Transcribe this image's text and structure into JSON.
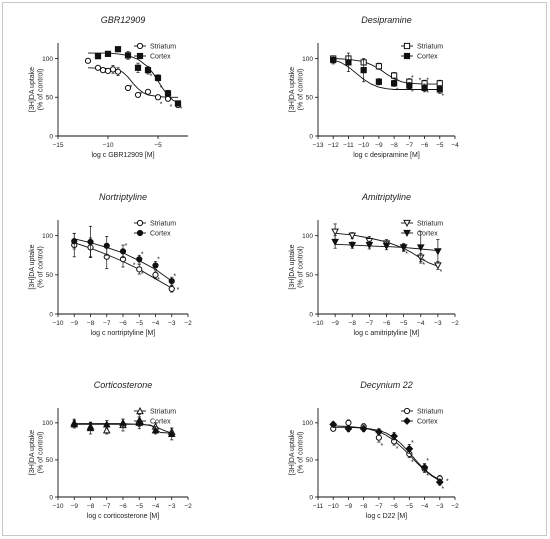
{
  "chart_data": [
    {
      "type": "scatter",
      "title": "GBR12909",
      "xlabel": "log c GBR12909 [M]",
      "ylabel": [
        "[3H]DA uptake",
        "(% of control)"
      ],
      "xlim": [
        -15,
        -2
      ],
      "ylim": [
        0,
        120
      ],
      "xticks": [
        -15,
        -10,
        -5
      ],
      "yticks": [
        0,
        50,
        100
      ],
      "legend": "top-right",
      "series": [
        {
          "name": "Striatum",
          "marker": "circle-open",
          "x": [
            -12,
            -11,
            -10.5,
            -10,
            -9.5,
            -9,
            -8,
            -7,
            -6,
            -5,
            -4,
            -3
          ],
          "y": [
            97,
            88,
            85,
            84,
            86,
            83,
            62,
            53,
            57,
            50,
            48,
            40
          ],
          "err": [
            1,
            2,
            3,
            2,
            5,
            5,
            3,
            2,
            3,
            3,
            3,
            3
          ],
          "fit_x": [
            -12,
            -11,
            -10,
            -9,
            -8.5,
            -8,
            -7.5,
            -7,
            -6.5,
            -6,
            -5,
            -4,
            -3
          ],
          "fit_y": [
            88,
            87.5,
            87,
            85,
            82,
            76,
            68,
            61,
            56,
            53,
            51,
            50,
            50
          ]
        },
        {
          "name": "Cortex",
          "marker": "square-filled",
          "x": [
            -11,
            -10,
            -9,
            -8,
            -7,
            -6,
            -5,
            -4,
            -3
          ],
          "y": [
            103,
            106,
            112,
            104,
            88,
            85,
            75,
            55,
            42
          ],
          "err": [
            2,
            3,
            3,
            5,
            6,
            5,
            4,
            4,
            3
          ],
          "fit_x": [
            -12,
            -11,
            -10,
            -9,
            -8,
            -7,
            -6,
            -5.5,
            -5,
            -4.5,
            -4,
            -3.5,
            -3
          ],
          "fit_y": [
            107,
            107,
            107,
            106,
            104,
            99,
            89,
            81,
            71,
            61,
            52,
            46,
            43
          ]
        }
      ],
      "annotations": [
        {
          "text": "*",
          "x": -8,
          "y": 64
        },
        {
          "text": "*",
          "x": -7,
          "y": 55
        },
        {
          "text": "*",
          "x": -6,
          "y": 78
        },
        {
          "text": "*",
          "x": -5,
          "y": 63
        },
        {
          "text": "*",
          "x": -5,
          "y": 42
        },
        {
          "text": "*",
          "x": -4,
          "y": 48
        },
        {
          "text": "*",
          "x": -4,
          "y": 39
        },
        {
          "text": "*",
          "x": -3,
          "y": 36
        }
      ]
    },
    {
      "type": "scatter",
      "title": "Desipramine",
      "xlabel": "log c desipramine [M]",
      "ylabel": [
        "[3H]DA uptake",
        "(% of control)"
      ],
      "xlim": [
        -13,
        -4
      ],
      "ylim": [
        0,
        120
      ],
      "xticks": [
        -13,
        -12,
        -11,
        -10,
        -9,
        -8,
        -7,
        -6,
        -5,
        -4
      ],
      "yticks": [
        0,
        50,
        100
      ],
      "legend": "top-right",
      "series": [
        {
          "name": "Striatum",
          "marker": "square-open",
          "x": [
            -12,
            -11,
            -10,
            -9,
            -8,
            -7,
            -6,
            -5
          ],
          "y": [
            100,
            100,
            95,
            90,
            78,
            70,
            68,
            68
          ],
          "err": [
            2,
            2,
            3,
            4,
            4,
            4,
            4,
            4
          ],
          "fit_x": [
            -12,
            -11,
            -10,
            -9.5,
            -9,
            -8.5,
            -8,
            -7.5,
            -7,
            -6,
            -5
          ],
          "fit_y": [
            100,
            99,
            96,
            92,
            87,
            80,
            74,
            70,
            68,
            67,
            67
          ]
        },
        {
          "name": "Cortex",
          "marker": "square-filled",
          "x": [
            -12,
            -11,
            -10,
            -9,
            -8,
            -7,
            -6,
            -5
          ],
          "y": [
            98,
            95,
            85,
            70,
            68,
            65,
            62,
            60
          ],
          "err": [
            5,
            12,
            15,
            4,
            4,
            4,
            5,
            5
          ],
          "fit_x": [
            -12,
            -11.5,
            -11,
            -10.5,
            -10,
            -9.5,
            -9,
            -8.5,
            -8,
            -7,
            -6,
            -5
          ],
          "fit_y": [
            98,
            95,
            89,
            81,
            73,
            67,
            63,
            61,
            60,
            60,
            60,
            60
          ]
        }
      ],
      "annotations": [
        {
          "text": "*",
          "x": -8,
          "y": 72
        },
        {
          "text": "*",
          "x": -8,
          "y": 60
        },
        {
          "text": "*",
          "x": -7,
          "y": 76
        },
        {
          "text": "*",
          "x": -7,
          "y": 58
        },
        {
          "text": "*",
          "x": -6.5,
          "y": 73
        },
        {
          "text": "*",
          "x": -6,
          "y": 73
        },
        {
          "text": "*",
          "x": -6,
          "y": 57
        },
        {
          "text": "*",
          "x": -5,
          "y": 53
        }
      ]
    },
    {
      "type": "scatter",
      "title": "Nortriptyline",
      "xlabel": "log c nortriptyline [M]",
      "ylabel": [
        "[3H]DA uptake",
        "(% of control)"
      ],
      "xlim": [
        -10,
        -2
      ],
      "ylim": [
        0,
        120
      ],
      "xticks": [
        -10,
        -9,
        -8,
        -7,
        -6,
        -5,
        -4,
        -3,
        -2
      ],
      "yticks": [
        0,
        50,
        100
      ],
      "legend": "top-right",
      "series": [
        {
          "name": "Striatum",
          "marker": "circle-open",
          "x": [
            -9,
            -8,
            -7,
            -6,
            -5,
            -4,
            -3
          ],
          "y": [
            88,
            85,
            73,
            70,
            57,
            50,
            32
          ],
          "err": [
            15,
            12,
            15,
            10,
            6,
            5,
            4
          ],
          "fit_x": [
            -9,
            -8,
            -7,
            -6,
            -5,
            -4,
            -3
          ],
          "fit_y": [
            91,
            84,
            76,
            67,
            57,
            45,
            33
          ]
        },
        {
          "name": "Cortex",
          "marker": "circle-filled",
          "x": [
            -9,
            -8,
            -7,
            -6,
            -5,
            -4,
            -3
          ],
          "y": [
            93,
            92,
            87,
            80,
            70,
            62,
            42
          ],
          "err": [
            10,
            20,
            12,
            8,
            5,
            5,
            5
          ],
          "fit_x": [
            -9,
            -8,
            -7,
            -6,
            -5,
            -4,
            -3
          ],
          "fit_y": [
            96,
            91,
            85,
            78,
            68,
            57,
            42
          ]
        }
      ],
      "annotations": [
        {
          "text": "*",
          "x": -6,
          "y": 88
        },
        {
          "text": "*",
          "x": -5.5,
          "y": 63
        },
        {
          "text": "*",
          "x": -5,
          "y": 77
        },
        {
          "text": "*",
          "x": -5,
          "y": 52
        },
        {
          "text": "*",
          "x": -4,
          "y": 71
        },
        {
          "text": "*",
          "x": -4,
          "y": 45
        },
        {
          "text": "*",
          "x": -3,
          "y": 49
        },
        {
          "text": "*",
          "x": -2.8,
          "y": 32
        }
      ]
    },
    {
      "type": "scatter",
      "title": "Amitriptyline",
      "xlabel": "log c amitriptyline [M]",
      "ylabel": [
        "[3H]DA uptake",
        "(% of control)"
      ],
      "xlim": [
        -10,
        -2
      ],
      "ylim": [
        0,
        120
      ],
      "xticks": [
        -10,
        -9,
        -8,
        -7,
        -6,
        -5,
        -4,
        -3,
        -2
      ],
      "yticks": [
        0,
        50,
        100
      ],
      "legend": "top-right",
      "series": [
        {
          "name": "Striatum",
          "marker": "triangle-down-open",
          "x": [
            -9,
            -8,
            -7,
            -6,
            -5,
            -4,
            -3
          ],
          "y": [
            105,
            100,
            93,
            90,
            85,
            72,
            62
          ],
          "err": [
            10,
            4,
            6,
            5,
            5,
            5,
            5
          ],
          "fit_x": [
            -9,
            -8,
            -7,
            -6,
            -5,
            -4.5,
            -4,
            -3.5,
            -3
          ],
          "fit_y": [
            103,
            101,
            97,
            92,
            84,
            78,
            71,
            65,
            61
          ]
        },
        {
          "name": "Cortex",
          "marker": "triangle-down-filled",
          "x": [
            -9,
            -8,
            -7,
            -6,
            -5,
            -4,
            -3
          ],
          "y": [
            92,
            88,
            88,
            87,
            85,
            85,
            80
          ],
          "err": [
            8,
            4,
            5,
            5,
            4,
            20,
            15
          ],
          "fit_x": [
            -9,
            -8,
            -7,
            -6,
            -5,
            -4,
            -3
          ],
          "fit_y": [
            89,
            88,
            87,
            86,
            85,
            83,
            81
          ]
        }
      ],
      "annotations": [
        {
          "text": "*",
          "x": -5,
          "y": 78
        },
        {
          "text": "*",
          "x": -4,
          "y": 68
        },
        {
          "text": "*",
          "x": -4,
          "y": 64
        },
        {
          "text": "*",
          "x": -3,
          "y": 55
        }
      ]
    },
    {
      "type": "scatter",
      "title": "Corticosterone",
      "xlabel": "log c corticosterone [M]",
      "ylabel": [
        "[3H]DA uptake",
        "(% of control)"
      ],
      "xlim": [
        -10,
        -2
      ],
      "ylim": [
        0,
        120
      ],
      "xticks": [
        -10,
        -9,
        -8,
        -7,
        -6,
        -5,
        -4,
        -3,
        -2
      ],
      "yticks": [
        0,
        50,
        100
      ],
      "legend": "top-right",
      "series": [
        {
          "name": "Striatum",
          "marker": "triangle-up-open",
          "x": [
            -9,
            -8,
            -7,
            -6,
            -5,
            -4,
            -3
          ],
          "y": [
            100,
            95,
            90,
            97,
            103,
            95,
            88
          ],
          "err": [
            5,
            5,
            5,
            8,
            8,
            5,
            5
          ],
          "fit_x": [
            -9,
            -8,
            -7,
            -6,
            -5,
            -4.5,
            -4,
            -3.5,
            -3
          ],
          "fit_y": [
            99,
            99,
            99,
            99,
            98,
            97,
            95,
            90,
            86
          ]
        },
        {
          "name": "Cortex",
          "marker": "triangle-up-filled",
          "x": [
            -9,
            -8,
            -7,
            -6,
            -5,
            -4,
            -3
          ],
          "y": [
            98,
            93,
            98,
            100,
            100,
            90,
            85
          ],
          "err": [
            5,
            8,
            5,
            5,
            8,
            5,
            8
          ],
          "fit_x": [
            -9,
            -8,
            -7,
            -6,
            -5,
            -4.3,
            -4,
            -3.7,
            -3
          ],
          "fit_y": [
            98,
            98,
            98,
            98,
            98,
            97,
            92,
            87,
            86
          ]
        }
      ],
      "annotations": []
    },
    {
      "type": "scatter",
      "title": "Decynium 22",
      "xlabel": "log c D22 [M]",
      "ylabel": [
        "[3H]DA uptake",
        "(% of control)"
      ],
      "xlim": [
        -11,
        -2
      ],
      "ylim": [
        0,
        120
      ],
      "xticks": [
        -11,
        -10,
        -9,
        -8,
        -7,
        -6,
        -5,
        -4,
        -3,
        -2
      ],
      "yticks": [
        0,
        50,
        100
      ],
      "legend": "top-right",
      "series": [
        {
          "name": "Striatum",
          "marker": "circle-open",
          "x": [
            -10,
            -9,
            -8,
            -7,
            -6,
            -5,
            -4,
            -3
          ],
          "y": [
            92,
            100,
            95,
            80,
            75,
            58,
            38,
            25
          ],
          "err": [
            3,
            4,
            4,
            6,
            5,
            5,
            5,
            4
          ],
          "fit_x": [
            -10,
            -9,
            -8,
            -7,
            -6.5,
            -6,
            -5.5,
            -5,
            -4.5,
            -4,
            -3.5,
            -3
          ],
          "fit_y": [
            96,
            95,
            93,
            88,
            83,
            76,
            67,
            57,
            46,
            36,
            28,
            22
          ]
        },
        {
          "name": "Cortex",
          "marker": "diamond-filled",
          "x": [
            -10,
            -9,
            -8,
            -7,
            -6,
            -5,
            -4,
            -3
          ],
          "y": [
            98,
            92,
            92,
            88,
            82,
            65,
            40,
            20
          ],
          "err": [
            3,
            4,
            4,
            4,
            5,
            6,
            5,
            4
          ],
          "fit_x": [
            -10,
            -9,
            -8,
            -7,
            -6.5,
            -6,
            -5.5,
            -5,
            -4.5,
            -4,
            -3.5,
            -3
          ],
          "fit_y": [
            94,
            94,
            93,
            90,
            86,
            80,
            71,
            60,
            48,
            37,
            29,
            23
          ]
        }
      ],
      "annotations": [
        {
          "text": "*",
          "x": -7,
          "y": 70
        },
        {
          "text": "*",
          "x": -6,
          "y": 66
        },
        {
          "text": "*",
          "x": -5,
          "y": 74
        },
        {
          "text": "*",
          "x": -5,
          "y": 48
        },
        {
          "text": "*",
          "x": -4,
          "y": 50
        },
        {
          "text": "*",
          "x": -4,
          "y": 30
        },
        {
          "text": "*",
          "x": -3,
          "y": 12
        },
        {
          "text": "*",
          "x": -2.7,
          "y": 22
        }
      ]
    }
  ]
}
